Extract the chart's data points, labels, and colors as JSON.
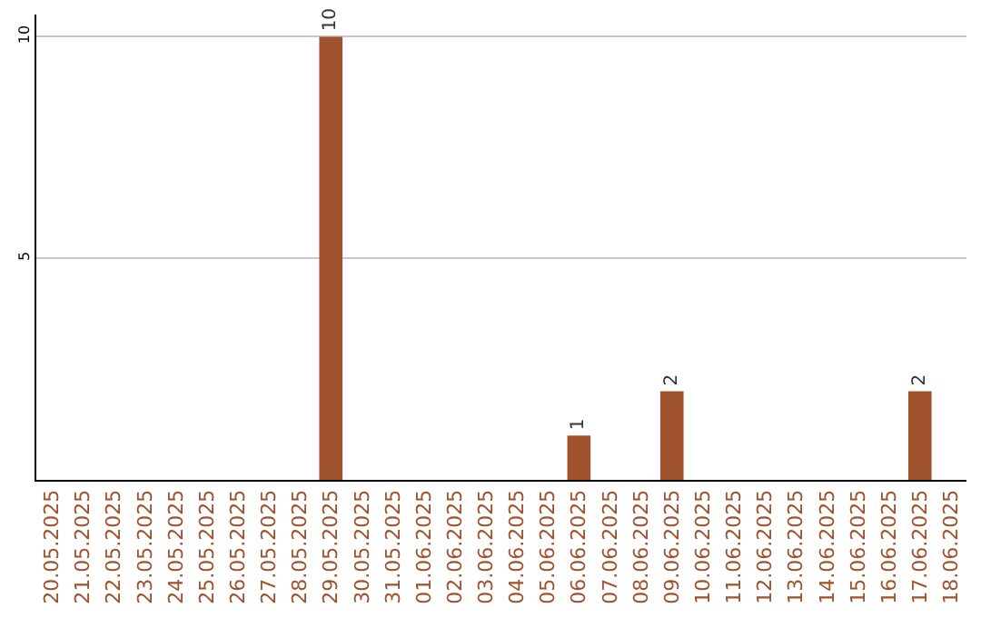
{
  "chart_data": {
    "type": "bar",
    "categories": [
      "20.05.2025",
      "21.05.2025",
      "22.05.2025",
      "23.05.2025",
      "24.05.2025",
      "25.05.2025",
      "26.05.2025",
      "27.05.2025",
      "28.05.2025",
      "29.05.2025",
      "30.05.2025",
      "31.05.2025",
      "01.06.2025",
      "02.06.2025",
      "03.06.2025",
      "04.06.2025",
      "05.06.2025",
      "06.06.2025",
      "07.06.2025",
      "08.06.2025",
      "09.06.2025",
      "10.06.2025",
      "11.06.2025",
      "12.06.2025",
      "13.06.2025",
      "14.06.2025",
      "15.06.2025",
      "16.06.2025",
      "17.06.2025",
      "18.06.2025"
    ],
    "values": [
      0,
      0,
      0,
      0,
      0,
      0,
      0,
      0,
      0,
      10,
      0,
      0,
      0,
      0,
      0,
      0,
      0,
      1,
      0,
      0,
      2,
      0,
      0,
      0,
      0,
      0,
      0,
      0,
      2,
      0
    ],
    "value_labels": [
      null,
      null,
      null,
      null,
      null,
      null,
      null,
      null,
      null,
      "10",
      null,
      null,
      null,
      null,
      null,
      null,
      null,
      "1",
      null,
      null,
      "2",
      null,
      null,
      null,
      null,
      null,
      null,
      null,
      "2",
      null
    ],
    "color": "#a0522d",
    "ylim": [
      0,
      10.5
    ],
    "yticks": [
      5,
      10
    ],
    "grid": "y",
    "legend": false
  }
}
